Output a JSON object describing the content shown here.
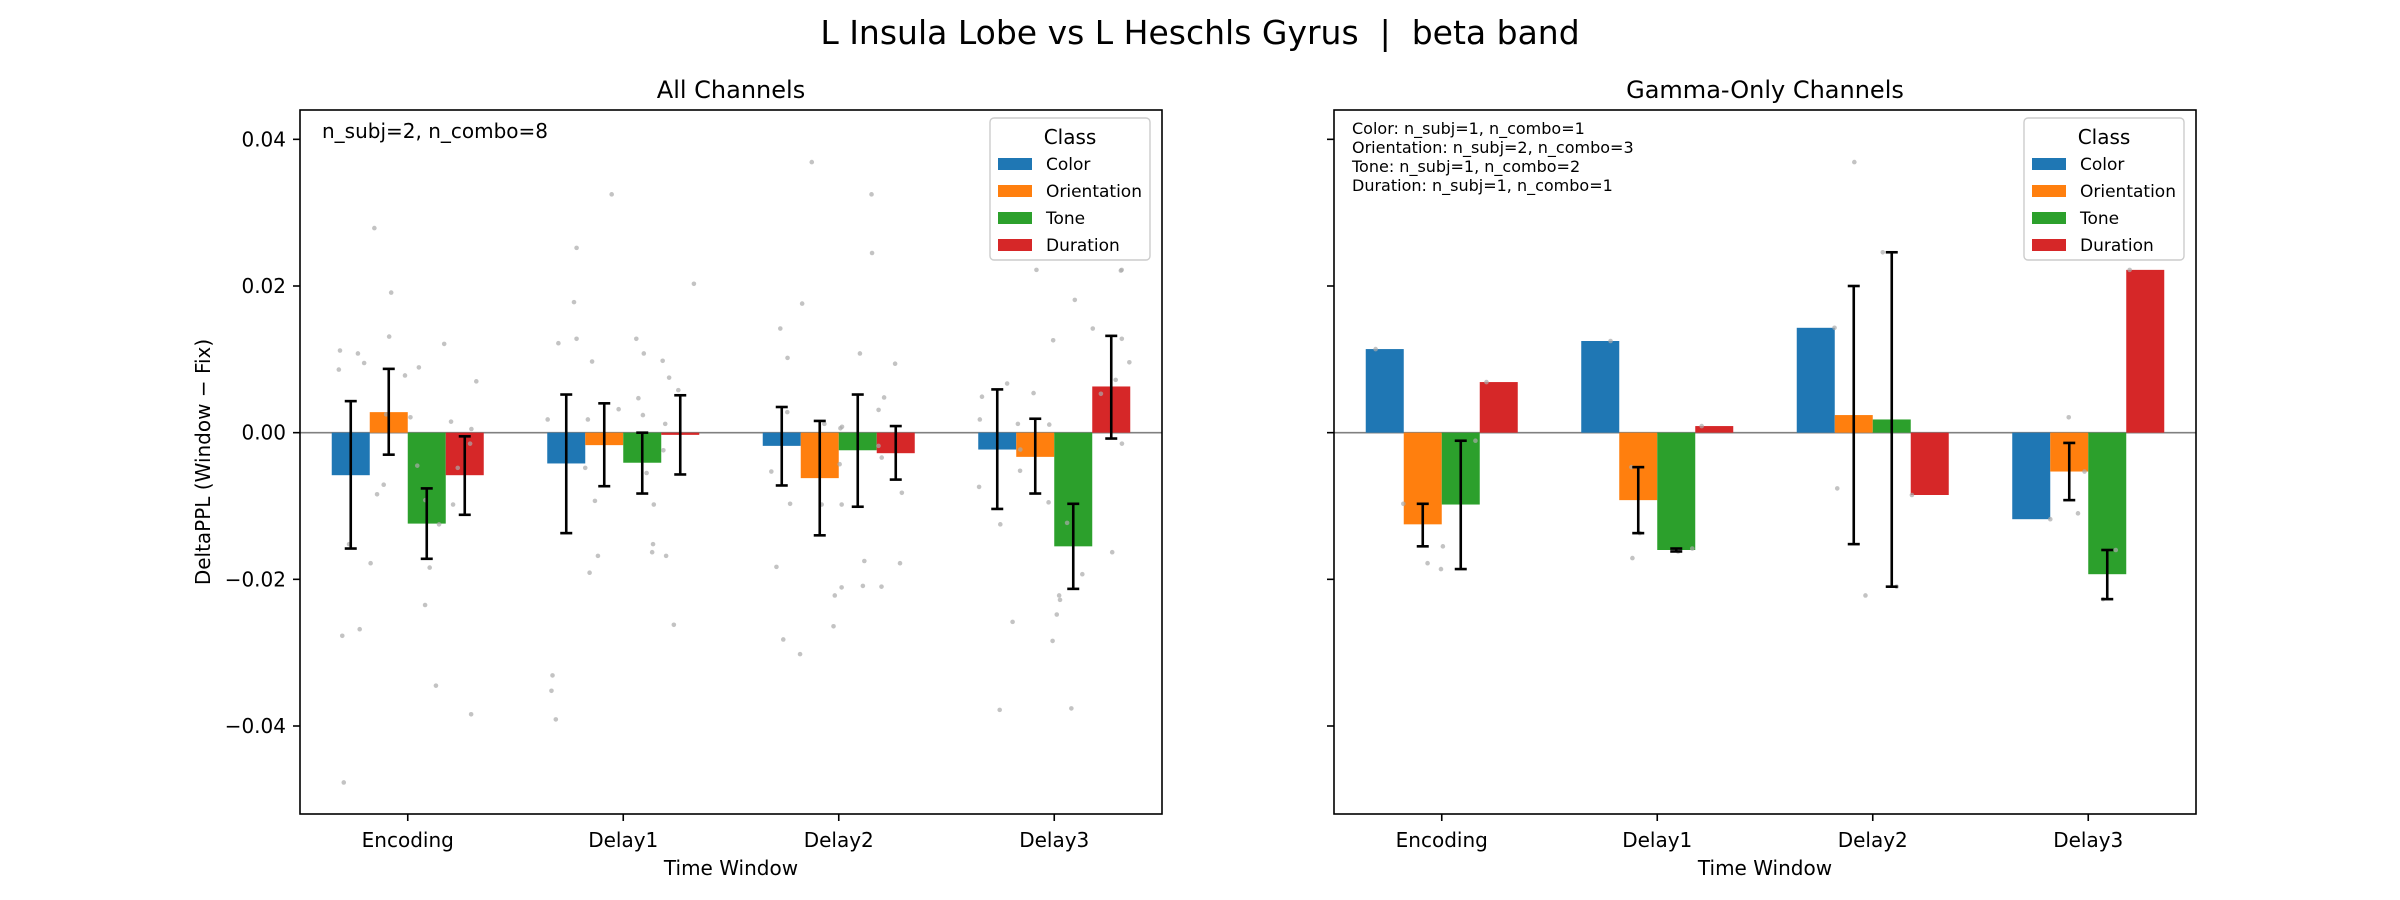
{
  "figure": {
    "suptitle": "L Insula Lobe vs L Heschls Gyrus  |  beta band"
  },
  "chart_data": [
    {
      "type": "bar",
      "title": "All Channels",
      "xlabel": "Time Window",
      "ylabel": "DeltaPPL (Window − Fix)",
      "categories": [
        "Encoding",
        "Delay1",
        "Delay2",
        "Delay3"
      ],
      "ylim": [
        -0.052,
        0.044
      ],
      "yticks": [
        -0.04,
        -0.02,
        0.0,
        0.02,
        0.04
      ],
      "ytick_labels": [
        "−0.04",
        "−0.02",
        "0.00",
        "0.02",
        "0.04"
      ],
      "legend": {
        "title": "Class",
        "placement": "upper right"
      },
      "annotations": [
        "n_subj=2, n_combo=8"
      ],
      "grid": false,
      "series": [
        {
          "name": "Color",
          "color": "#1f77b4",
          "values": [
            -0.0058,
            -0.0042,
            -0.0018,
            -0.0023
          ],
          "err_low": [
            -0.0158,
            -0.0137,
            -0.0072,
            -0.0104
          ],
          "err_high": [
            0.0043,
            0.0052,
            0.0035,
            0.0059
          ]
        },
        {
          "name": "Orientation",
          "color": "#ff7f0e",
          "values": [
            0.0028,
            -0.0017,
            -0.0062,
            -0.0033
          ],
          "err_low": [
            -0.003,
            -0.0073,
            -0.014,
            -0.0083
          ],
          "err_high": [
            0.0087,
            0.004,
            0.0016,
            0.0019
          ]
        },
        {
          "name": "Tone",
          "color": "#2ca02c",
          "values": [
            -0.0124,
            -0.0041,
            -0.0024,
            -0.0155
          ],
          "err_low": [
            -0.0172,
            -0.0083,
            -0.0101,
            -0.0213
          ],
          "err_high": [
            -0.0076,
            0.0,
            0.0052,
            -0.0097
          ]
        },
        {
          "name": "Duration",
          "color": "#d62728",
          "values": [
            -0.0058,
            -0.0003,
            -0.0028,
            0.0063
          ],
          "err_low": [
            -0.0112,
            -0.0057,
            -0.0064,
            -0.0008
          ],
          "err_high": [
            -0.0005,
            0.0051,
            0.0009,
            0.0132
          ]
        }
      ],
      "points": [
        [
          [
            0.0112,
            0.0095,
            -0.0152,
            -0.0277,
            -0.0268,
            -0.0477,
            0.0108,
            0.0086
          ],
          [
            0.0279,
            0.0191,
            0.0131,
            -0.0071,
            -0.0084,
            -0.0178,
            0.0078,
            0.0025
          ],
          [
            0.0089,
            -0.0184,
            -0.0235,
            -0.0345,
            -0.0045,
            0.0021,
            -0.0125,
            -0.0092
          ],
          [
            0.0121,
            0.007,
            0.0015,
            -0.0384,
            -0.0098,
            -0.0015,
            -0.0048,
            0.0005
          ]
        ],
        [
          [
            0.0252,
            0.0178,
            0.0128,
            0.0122,
            -0.0331,
            -0.0352,
            -0.0391,
            0.0018
          ],
          [
            0.0325,
            0.0097,
            0.0018,
            -0.0093,
            -0.0168,
            -0.0191,
            0.0032,
            -0.0048
          ],
          [
            0.0128,
            0.0108,
            0.0047,
            -0.0098,
            -0.0152,
            -0.0163,
            0.0024,
            -0.0055
          ],
          [
            0.0203,
            0.0098,
            0.0075,
            0.0058,
            -0.0168,
            -0.0262,
            0.0012,
            -0.0024
          ]
        ],
        [
          [
            0.0176,
            0.0142,
            0.0102,
            -0.0097,
            -0.0183,
            -0.0282,
            -0.0053,
            0.0028
          ],
          [
            0.0369,
            0.0012,
            -0.0043,
            -0.0098,
            -0.0222,
            -0.0264,
            -0.0302,
            0.0006
          ],
          [
            0.0325,
            0.0245,
            0.0108,
            -0.0098,
            -0.0175,
            -0.0209,
            -0.0211,
            0.0008
          ],
          [
            0.0094,
            0.0031,
            -0.0018,
            -0.0082,
            -0.0178,
            -0.021,
            0.0048,
            -0.0034
          ]
        ],
        [
          [
            0.0067,
            0.0049,
            0.0012,
            -0.0074,
            -0.0258,
            -0.0378,
            -0.0125,
            0.0018
          ],
          [
            0.0222,
            0.0126,
            0.0054,
            -0.0052,
            -0.0095,
            -0.0284,
            -0.0023,
            0.0011
          ],
          [
            0.0181,
            0.0142,
            -0.0123,
            -0.0222,
            -0.0228,
            -0.0376,
            -0.0193,
            -0.0248
          ],
          [
            0.0222,
            0.0221,
            0.0096,
            0.0053,
            -0.0163,
            -0.0015,
            0.0128,
            0.0072
          ]
        ]
      ]
    },
    {
      "type": "bar",
      "title": "Gamma-Only Channels",
      "xlabel": "Time Window",
      "ylabel": "",
      "categories": [
        "Encoding",
        "Delay1",
        "Delay2",
        "Delay3"
      ],
      "ylim": [
        -0.052,
        0.044
      ],
      "yticks": [
        -0.04,
        -0.02,
        0.0,
        0.02,
        0.04
      ],
      "ytick_labels": [
        "",
        "",
        "",
        "",
        ""
      ],
      "legend": {
        "title": "Class",
        "placement": "upper right"
      },
      "annotations": [
        "Color: n_subj=1, n_combo=1",
        "Orientation: n_subj=2, n_combo=3",
        "Tone: n_subj=1, n_combo=2",
        "Duration: n_subj=1, n_combo=1"
      ],
      "grid": false,
      "series": [
        {
          "name": "Color",
          "color": "#1f77b4",
          "values": [
            0.0114,
            0.0125,
            0.0143,
            -0.0118
          ],
          "err_low": [
            null,
            null,
            null,
            null
          ],
          "err_high": [
            null,
            null,
            null,
            null
          ]
        },
        {
          "name": "Orientation",
          "color": "#ff7f0e",
          "values": [
            -0.0125,
            -0.0092,
            0.0024,
            -0.0053
          ],
          "err_low": [
            -0.0155,
            -0.0137,
            -0.0152,
            -0.0092
          ],
          "err_high": [
            -0.0097,
            -0.0047,
            0.02,
            -0.0014
          ]
        },
        {
          "name": "Tone",
          "color": "#2ca02c",
          "values": [
            -0.0098,
            -0.016,
            0.0018,
            -0.0193
          ],
          "err_low": [
            -0.0186,
            -0.0162,
            -0.021,
            -0.0227
          ],
          "err_high": [
            -0.0011,
            -0.0158,
            0.0246,
            -0.016
          ]
        },
        {
          "name": "Duration",
          "color": "#d62728",
          "values": [
            0.0069,
            0.0009,
            -0.0085,
            0.0222
          ],
          "err_low": [
            null,
            null,
            null,
            null
          ],
          "err_high": [
            null,
            null,
            null,
            null
          ]
        }
      ],
      "points": [
        [
          [
            0.0114
          ],
          [
            -0.0155,
            -0.0178,
            -0.0097
          ],
          [
            -0.0186,
            -0.0011
          ],
          [
            0.0069
          ]
        ],
        [
          [
            0.0125
          ],
          [
            -0.0137,
            -0.0171,
            -0.0047
          ],
          [
            -0.0162,
            -0.0158
          ],
          [
            0.0009
          ]
        ],
        [
          [
            0.0143
          ],
          [
            0.0369,
            -0.0222,
            -0.0076
          ],
          [
            -0.021,
            0.0246
          ],
          [
            -0.0085
          ]
        ],
        [
          [
            -0.0118
          ],
          [
            0.0021,
            -0.011,
            -0.0053
          ],
          [
            -0.0227,
            -0.016
          ],
          [
            0.0222
          ]
        ]
      ]
    }
  ]
}
